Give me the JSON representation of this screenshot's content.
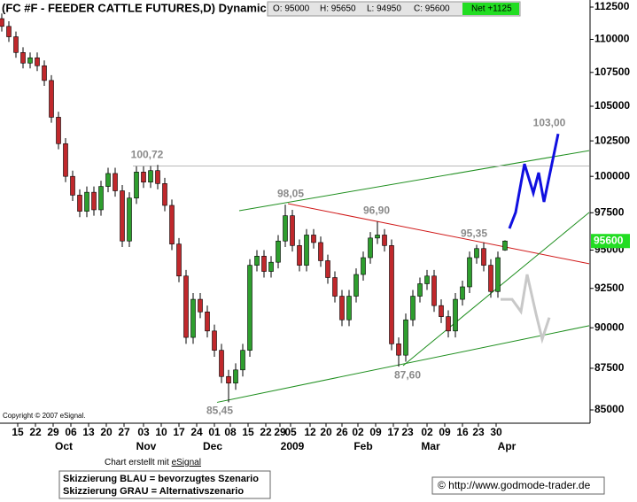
{
  "chart_data": {
    "type": "candlestick",
    "title": "(FC #F - FEEDER CATTLE FUTURES,D) Dynamic,",
    "quote": [
      "O: 95000",
      "H: 95650",
      "L: 94950",
      "C: 95600"
    ],
    "net": "Net +1125",
    "copyright": "Copyright © 2007 eSignal.",
    "log_scale": true,
    "up_color": "#2e9e2e",
    "down_color": "#c0282c",
    "x": [
      0,
      2,
      4,
      6,
      8,
      10,
      12,
      14,
      16,
      18,
      20,
      22,
      24,
      26,
      28,
      30,
      32,
      34,
      36,
      38,
      40,
      42,
      44,
      46,
      48,
      50,
      52,
      54,
      56,
      58,
      60,
      62,
      64,
      66,
      68,
      70,
      72,
      74,
      76,
      78,
      80,
      82,
      84,
      86,
      88,
      90,
      92,
      94,
      96,
      98,
      100,
      102,
      104,
      106,
      108,
      110,
      112,
      114,
      116,
      118,
      120,
      122,
      124,
      126,
      128,
      130,
      132,
      134,
      136,
      138,
      140,
      142
    ],
    "open": [
      111600,
      111000,
      110200,
      109000,
      108200,
      108600,
      108000,
      106900,
      104200,
      102300,
      100000,
      98700,
      97600,
      98900,
      97700,
      99300,
      100200,
      99000,
      95600,
      98500,
      100300,
      99600,
      100400,
      99500,
      98000,
      95400,
      93300,
      89400,
      91800,
      91000,
      89800,
      88600,
      87000,
      86600,
      87400,
      88600,
      94000,
      94600,
      93600,
      94200,
      95600,
      97300,
      95300,
      94000,
      96000,
      95500,
      94300,
      93200,
      92000,
      90500,
      92000,
      93400,
      94500,
      95800,
      96000,
      95300,
      89000,
      88300,
      90500,
      92000,
      92800,
      93300,
      91400,
      90700,
      89800,
      91800,
      92600,
      94500,
      95100,
      94000,
      92300,
      95000
    ],
    "high": [
      112000,
      111400,
      110600,
      109400,
      109000,
      109000,
      108400,
      107300,
      104600,
      102700,
      100400,
      99100,
      99300,
      99300,
      99700,
      100600,
      100600,
      99400,
      98900,
      100700,
      100700,
      100720,
      100800,
      99900,
      98400,
      95800,
      93700,
      92200,
      92200,
      91400,
      90200,
      89000,
      87400,
      87800,
      89000,
      94400,
      95000,
      95000,
      94600,
      96000,
      98050,
      97700,
      95700,
      96400,
      96400,
      95900,
      94700,
      93600,
      92400,
      92400,
      93800,
      94900,
      96200,
      96900,
      96400,
      95700,
      89400,
      90900,
      92400,
      93200,
      93700,
      93700,
      91800,
      91100,
      92200,
      93000,
      94900,
      95350,
      95500,
      94400,
      94900,
      95650
    ],
    "low": [
      110600,
      109800,
      108600,
      107800,
      107800,
      107600,
      106500,
      103800,
      101900,
      99600,
      98300,
      97200,
      97200,
      97300,
      97300,
      98900,
      98600,
      95200,
      95200,
      98100,
      99200,
      99200,
      99100,
      97600,
      95000,
      92900,
      89000,
      89000,
      90600,
      89400,
      88200,
      86600,
      85450,
      86200,
      87000,
      88200,
      93600,
      93200,
      93200,
      93800,
      95200,
      94900,
      93600,
      93600,
      95100,
      93900,
      92800,
      91600,
      90100,
      90100,
      91600,
      93000,
      94100,
      95400,
      94900,
      88600,
      87600,
      87900,
      90100,
      91600,
      92400,
      91000,
      90300,
      89400,
      89400,
      91400,
      92200,
      94100,
      93600,
      91900,
      91900,
      94950
    ],
    "close": [
      111000,
      110200,
      109000,
      108200,
      108600,
      108000,
      106900,
      104200,
      102300,
      100000,
      98700,
      97600,
      98900,
      97700,
      99300,
      100200,
      99000,
      95600,
      98500,
      100300,
      99600,
      100400,
      99500,
      98000,
      95400,
      93300,
      89400,
      91800,
      91000,
      89800,
      88600,
      87000,
      86600,
      87400,
      88600,
      94000,
      94600,
      93600,
      94200,
      95600,
      97300,
      95300,
      94000,
      96000,
      95500,
      94300,
      93200,
      92000,
      90500,
      92000,
      93400,
      94500,
      95800,
      96000,
      95300,
      89000,
      88300,
      90500,
      92000,
      92800,
      93300,
      91400,
      90700,
      89800,
      91800,
      92600,
      94500,
      95100,
      94000,
      92300,
      94500,
      95600
    ],
    "xlim": [
      0,
      166
    ],
    "xticks": [
      {
        "value": 4.5,
        "label": "15"
      },
      {
        "value": 9.5,
        "label": "22"
      },
      {
        "value": 14.5,
        "label": "29"
      },
      {
        "value": 19.5,
        "label": "06"
      },
      {
        "value": 24.5,
        "label": "13"
      },
      {
        "value": 29.5,
        "label": "20"
      },
      {
        "value": 34.5,
        "label": "27"
      },
      {
        "value": 40,
        "label": "03"
      },
      {
        "value": 45,
        "label": "10"
      },
      {
        "value": 50,
        "label": "17"
      },
      {
        "value": 55,
        "label": "24"
      },
      {
        "value": 60,
        "label": "01"
      },
      {
        "value": 64.5,
        "label": "08"
      },
      {
        "value": 69.5,
        "label": "15"
      },
      {
        "value": 74.5,
        "label": "22"
      },
      {
        "value": 78.5,
        "label": "29"
      },
      {
        "value": 81.5,
        "label": "05"
      },
      {
        "value": 87,
        "label": "12"
      },
      {
        "value": 91.5,
        "label": "20"
      },
      {
        "value": 96,
        "label": "26"
      },
      {
        "value": 100.5,
        "label": "02"
      },
      {
        "value": 105.5,
        "label": "09"
      },
      {
        "value": 110.5,
        "label": "17"
      },
      {
        "value": 114.5,
        "label": "23"
      },
      {
        "value": 120,
        "label": "02"
      },
      {
        "value": 125,
        "label": "09"
      },
      {
        "value": 130,
        "label": "16"
      },
      {
        "value": 134.5,
        "label": "23"
      },
      {
        "value": 139.5,
        "label": "30"
      }
    ],
    "month_labels": [
      {
        "value": 17.5,
        "label": "Oct"
      },
      {
        "value": 40.75,
        "label": "Nov"
      },
      {
        "value": 59.5,
        "label": "Dec"
      },
      {
        "value": 82,
        "label": "2009"
      },
      {
        "value": 102,
        "label": "Feb"
      },
      {
        "value": 121,
        "label": "Mar"
      },
      {
        "value": 142.5,
        "label": "Apr"
      }
    ],
    "ylim": [
      85000,
      112500
    ],
    "yticks": [
      85000,
      87500,
      90000,
      92500,
      95000,
      97500,
      100000,
      102500,
      105000,
      107500,
      110000,
      112500
    ],
    "last_price": 95600,
    "lines": [
      {
        "color": "#1f8f1f",
        "width": 1,
        "x": [
          67,
          165.75
        ],
        "values": [
          97640,
          101810
        ]
      },
      {
        "color": "#d01818",
        "width": 1,
        "x": [
          80.75,
          165.75
        ],
        "values": [
          98120,
          94100
        ]
      },
      {
        "color": "#1f8f1f",
        "width": 1,
        "x": [
          60.75,
          165.75
        ],
        "values": [
          85450,
          90130
        ]
      },
      {
        "color": "#1f8f1f",
        "width": 1,
        "x": [
          113.25,
          165.75
        ],
        "values": [
          87660,
          97520
        ]
      },
      {
        "color": "#b8b8b8",
        "width": 1,
        "x": [
          37,
          165.75
        ],
        "values": [
          100720,
          100720
        ]
      },
      {
        "color": "#1010e0",
        "width": 3,
        "x": [
          143.25,
          145,
          147.5,
          150,
          151.5,
          153,
          157
        ],
        "values": [
          96440,
          97520,
          100870,
          98850,
          100260,
          98240,
          103000
        ]
      },
      {
        "color": "#c8c8c8",
        "width": 3,
        "x": [
          140.75,
          144,
          146.5,
          148.25,
          150.75,
          152.5,
          154.5
        ],
        "values": [
          91800,
          91800,
          91020,
          93400,
          90880,
          89290,
          90640
        ]
      }
    ],
    "annotations": [
      {
        "x": 41,
        "value": 100720,
        "label": "100,72",
        "position": "above"
      },
      {
        "x": 81.5,
        "value": 98050,
        "label": "98,05",
        "position": "above"
      },
      {
        "x": 105.75,
        "value": 96900,
        "label": "96,90",
        "position": "above"
      },
      {
        "x": 133.25,
        "value": 95350,
        "label": "95,35",
        "position": "above"
      },
      {
        "x": 114.5,
        "value": 87600,
        "label": "87,60",
        "position": "below"
      },
      {
        "x": 61.5,
        "value": 85450,
        "label": "85,45",
        "position": "below"
      },
      {
        "x": 154.5,
        "value": 103000,
        "label": "103,00",
        "position": "above"
      }
    ],
    "credit_prefix": "Chart erstellt mit ",
    "credit_link": "eSignal",
    "legend_notes": [
      "Skizzierung BLAU = bevorzugtes Szenario",
      "Skizzierung GRAU = Alternativszenario"
    ],
    "source": "© http://www.godmode-trader.de"
  }
}
